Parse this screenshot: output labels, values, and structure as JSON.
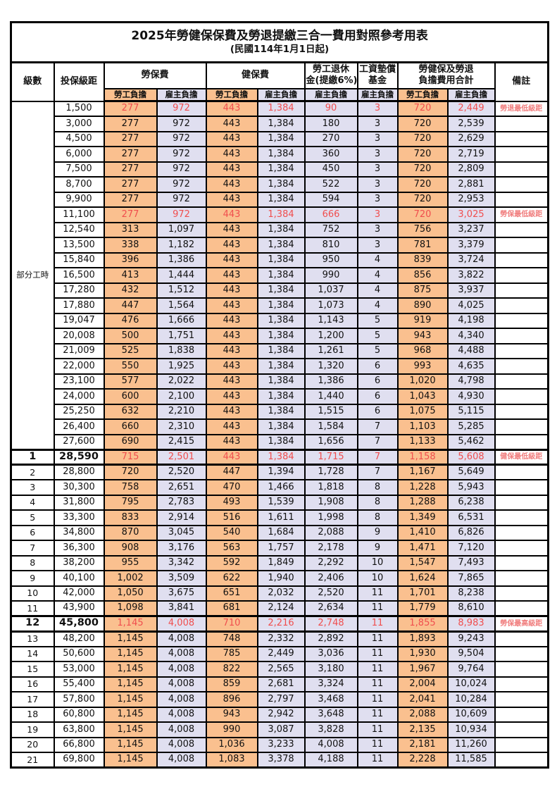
{
  "title": "2025年勞健保保費及勞退提繳三合一費用對照參考用表",
  "subtitle": "(民國114年1月1日起)",
  "colors": {
    "employee_bg": "#FAC08F",
    "employer_bg": "#E0DFF0",
    "highlight_text": "#F04E4E",
    "remark_text": "#F07D7D"
  },
  "header": {
    "level": "級數",
    "bracket": "投保級距",
    "labor_fee": "勞保費",
    "health_fee": "健保費",
    "pension_line1": "勞工退休",
    "pension_line2": "金(提繳6%)",
    "wage_fund_line1": "工資墊償",
    "wage_fund_line2": "基金",
    "total_line1": "勞健保及勞退",
    "total_line2": "負擔費用合計",
    "remark": "備註",
    "employee": "勞工負擔",
    "employer": "雇主負擔"
  },
  "part_time_label": "部分工時",
  "part_time_span": 23,
  "rows": [
    {
      "level": "",
      "bracket": "1,500",
      "values": [
        "277",
        "972",
        "443",
        "1,384",
        "90",
        "3",
        "720",
        "2,449"
      ],
      "remark": "勞退最低級距",
      "red": true
    },
    {
      "level": "",
      "bracket": "3,000",
      "values": [
        "277",
        "972",
        "443",
        "1,384",
        "180",
        "3",
        "720",
        "2,539"
      ],
      "remark": ""
    },
    {
      "level": "",
      "bracket": "4,500",
      "values": [
        "277",
        "972",
        "443",
        "1,384",
        "270",
        "3",
        "720",
        "2,629"
      ],
      "remark": ""
    },
    {
      "level": "",
      "bracket": "6,000",
      "values": [
        "277",
        "972",
        "443",
        "1,384",
        "360",
        "3",
        "720",
        "2,719"
      ],
      "remark": ""
    },
    {
      "level": "",
      "bracket": "7,500",
      "values": [
        "277",
        "972",
        "443",
        "1,384",
        "450",
        "3",
        "720",
        "2,809"
      ],
      "remark": ""
    },
    {
      "level": "",
      "bracket": "8,700",
      "values": [
        "277",
        "972",
        "443",
        "1,384",
        "522",
        "3",
        "720",
        "2,881"
      ],
      "remark": ""
    },
    {
      "level": "",
      "bracket": "9,900",
      "values": [
        "277",
        "972",
        "443",
        "1,384",
        "594",
        "3",
        "720",
        "2,953"
      ],
      "remark": ""
    },
    {
      "level": "",
      "bracket": "11,100",
      "values": [
        "277",
        "972",
        "443",
        "1,384",
        "666",
        "3",
        "720",
        "3,025"
      ],
      "remark": "勞保最低級距",
      "red": true
    },
    {
      "level": "",
      "bracket": "12,540",
      "values": [
        "313",
        "1,097",
        "443",
        "1,384",
        "752",
        "3",
        "756",
        "3,237"
      ],
      "remark": ""
    },
    {
      "level": "",
      "bracket": "13,500",
      "values": [
        "338",
        "1,182",
        "443",
        "1,384",
        "810",
        "3",
        "781",
        "3,379"
      ],
      "remark": ""
    },
    {
      "level": "",
      "bracket": "15,840",
      "values": [
        "396",
        "1,386",
        "443",
        "1,384",
        "950",
        "4",
        "839",
        "3,724"
      ],
      "remark": ""
    },
    {
      "level": "",
      "bracket": "16,500",
      "values": [
        "413",
        "1,444",
        "443",
        "1,384",
        "990",
        "4",
        "856",
        "3,822"
      ],
      "remark": ""
    },
    {
      "level": "",
      "bracket": "17,280",
      "values": [
        "432",
        "1,512",
        "443",
        "1,384",
        "1,037",
        "4",
        "875",
        "3,937"
      ],
      "remark": ""
    },
    {
      "level": "",
      "bracket": "17,880",
      "values": [
        "447",
        "1,564",
        "443",
        "1,384",
        "1,073",
        "4",
        "890",
        "4,025"
      ],
      "remark": ""
    },
    {
      "level": "",
      "bracket": "19,047",
      "values": [
        "476",
        "1,666",
        "443",
        "1,384",
        "1,143",
        "5",
        "919",
        "4,198"
      ],
      "remark": ""
    },
    {
      "level": "",
      "bracket": "20,008",
      "values": [
        "500",
        "1,751",
        "443",
        "1,384",
        "1,200",
        "5",
        "943",
        "4,340"
      ],
      "remark": ""
    },
    {
      "level": "",
      "bracket": "21,009",
      "values": [
        "525",
        "1,838",
        "443",
        "1,384",
        "1,261",
        "5",
        "968",
        "4,488"
      ],
      "remark": ""
    },
    {
      "level": "",
      "bracket": "22,000",
      "values": [
        "550",
        "1,925",
        "443",
        "1,384",
        "1,320",
        "6",
        "993",
        "4,635"
      ],
      "remark": ""
    },
    {
      "level": "",
      "bracket": "23,100",
      "values": [
        "577",
        "2,022",
        "443",
        "1,384",
        "1,386",
        "6",
        "1,020",
        "4,798"
      ],
      "remark": ""
    },
    {
      "level": "",
      "bracket": "24,000",
      "values": [
        "600",
        "2,100",
        "443",
        "1,384",
        "1,440",
        "6",
        "1,043",
        "4,930"
      ],
      "remark": ""
    },
    {
      "level": "",
      "bracket": "25,250",
      "values": [
        "632",
        "2,210",
        "443",
        "1,384",
        "1,515",
        "6",
        "1,075",
        "5,115"
      ],
      "remark": ""
    },
    {
      "level": "",
      "bracket": "26,400",
      "values": [
        "660",
        "2,310",
        "443",
        "1,384",
        "1,584",
        "7",
        "1,103",
        "5,285"
      ],
      "remark": ""
    },
    {
      "level": "",
      "bracket": "27,600",
      "values": [
        "690",
        "2,415",
        "443",
        "1,384",
        "1,656",
        "7",
        "1,133",
        "5,462"
      ],
      "remark": ""
    },
    {
      "level": "1",
      "bracket": "28,590",
      "values": [
        "715",
        "2,501",
        "443",
        "1,384",
        "1,715",
        "7",
        "1,158",
        "5,608"
      ],
      "remark": "健保最低級距",
      "red": true,
      "key": true
    },
    {
      "level": "2",
      "bracket": "28,800",
      "values": [
        "720",
        "2,520",
        "447",
        "1,394",
        "1,728",
        "7",
        "1,167",
        "5,649"
      ],
      "remark": ""
    },
    {
      "level": "3",
      "bracket": "30,300",
      "values": [
        "758",
        "2,651",
        "470",
        "1,466",
        "1,818",
        "8",
        "1,228",
        "5,943"
      ],
      "remark": ""
    },
    {
      "level": "4",
      "bracket": "31,800",
      "values": [
        "795",
        "2,783",
        "493",
        "1,539",
        "1,908",
        "8",
        "1,288",
        "6,238"
      ],
      "remark": ""
    },
    {
      "level": "5",
      "bracket": "33,300",
      "values": [
        "833",
        "2,914",
        "516",
        "1,611",
        "1,998",
        "8",
        "1,349",
        "6,531"
      ],
      "remark": ""
    },
    {
      "level": "6",
      "bracket": "34,800",
      "values": [
        "870",
        "3,045",
        "540",
        "1,684",
        "2,088",
        "9",
        "1,410",
        "6,826"
      ],
      "remark": ""
    },
    {
      "level": "7",
      "bracket": "36,300",
      "values": [
        "908",
        "3,176",
        "563",
        "1,757",
        "2,178",
        "9",
        "1,471",
        "7,120"
      ],
      "remark": ""
    },
    {
      "level": "8",
      "bracket": "38,200",
      "values": [
        "955",
        "3,342",
        "592",
        "1,849",
        "2,292",
        "10",
        "1,547",
        "7,493"
      ],
      "remark": ""
    },
    {
      "level": "9",
      "bracket": "40,100",
      "values": [
        "1,002",
        "3,509",
        "622",
        "1,940",
        "2,406",
        "10",
        "1,624",
        "7,865"
      ],
      "remark": ""
    },
    {
      "level": "10",
      "bracket": "42,000",
      "values": [
        "1,050",
        "3,675",
        "651",
        "2,032",
        "2,520",
        "11",
        "1,701",
        "8,238"
      ],
      "remark": ""
    },
    {
      "level": "11",
      "bracket": "43,900",
      "values": [
        "1,098",
        "3,841",
        "681",
        "2,124",
        "2,634",
        "11",
        "1,779",
        "8,610"
      ],
      "remark": ""
    },
    {
      "level": "12",
      "bracket": "45,800",
      "values": [
        "1,145",
        "4,008",
        "710",
        "2,216",
        "2,748",
        "11",
        "1,855",
        "8,983"
      ],
      "remark": "勞保最高級距",
      "red": true,
      "key": true
    },
    {
      "level": "13",
      "bracket": "48,200",
      "values": [
        "1,145",
        "4,008",
        "748",
        "2,332",
        "2,892",
        "11",
        "1,893",
        "9,243"
      ],
      "remark": ""
    },
    {
      "level": "14",
      "bracket": "50,600",
      "values": [
        "1,145",
        "4,008",
        "785",
        "2,449",
        "3,036",
        "11",
        "1,930",
        "9,504"
      ],
      "remark": ""
    },
    {
      "level": "15",
      "bracket": "53,000",
      "values": [
        "1,145",
        "4,008",
        "822",
        "2,565",
        "3,180",
        "11",
        "1,967",
        "9,764"
      ],
      "remark": ""
    },
    {
      "level": "16",
      "bracket": "55,400",
      "values": [
        "1,145",
        "4,008",
        "859",
        "2,681",
        "3,324",
        "11",
        "2,004",
        "10,024"
      ],
      "remark": ""
    },
    {
      "level": "17",
      "bracket": "57,800",
      "values": [
        "1,145",
        "4,008",
        "896",
        "2,797",
        "3,468",
        "11",
        "2,041",
        "10,284"
      ],
      "remark": ""
    },
    {
      "level": "18",
      "bracket": "60,800",
      "values": [
        "1,145",
        "4,008",
        "943",
        "2,942",
        "3,648",
        "11",
        "2,088",
        "10,609"
      ],
      "remark": ""
    },
    {
      "level": "19",
      "bracket": "63,800",
      "values": [
        "1,145",
        "4,008",
        "990",
        "3,087",
        "3,828",
        "11",
        "2,135",
        "10,934"
      ],
      "remark": ""
    },
    {
      "level": "20",
      "bracket": "66,800",
      "values": [
        "1,145",
        "4,008",
        "1,036",
        "3,233",
        "4,008",
        "11",
        "2,181",
        "11,260"
      ],
      "remark": ""
    },
    {
      "level": "21",
      "bracket": "69,800",
      "values": [
        "1,145",
        "4,008",
        "1,083",
        "3,378",
        "4,188",
        "11",
        "2,228",
        "11,585"
      ],
      "remark": ""
    }
  ]
}
